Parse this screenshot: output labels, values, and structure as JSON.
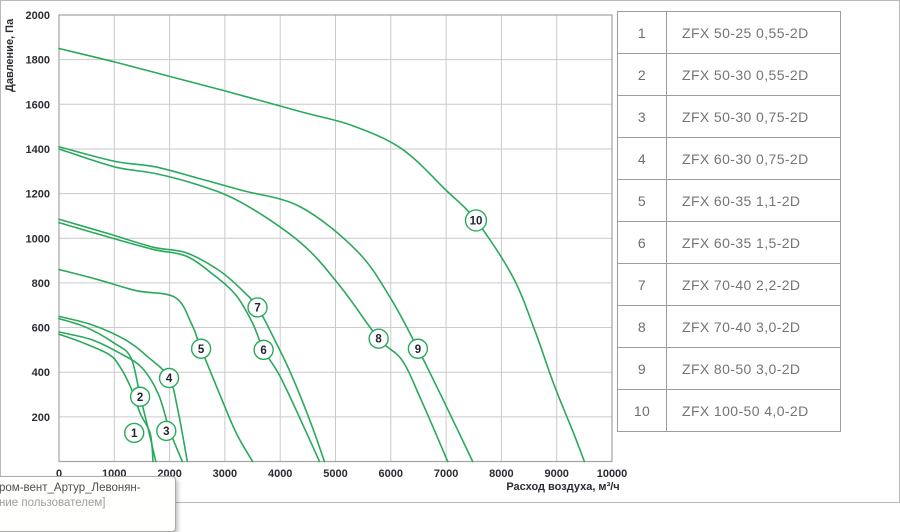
{
  "chart_data": {
    "type": "line",
    "title": "",
    "xlabel": "Расход воздуха, м³/ч",
    "ylabel": "Давление, Па",
    "xlim": [
      0,
      10000
    ],
    "ylim": [
      0,
      2000
    ],
    "x_ticks": [
      0,
      1000,
      2000,
      3000,
      4000,
      5000,
      6000,
      7000,
      8000,
      9000,
      10000
    ],
    "y_ticks": [
      200,
      400,
      600,
      800,
      1000,
      1200,
      1400,
      1600,
      1800,
      2000
    ],
    "grid": true,
    "legend_position": "right-table",
    "line_color": "#2aa95c",
    "grid_color": "#cacaca",
    "axis_color": "#a3a3a3",
    "series": [
      {
        "name": "1",
        "label_at": [
          1360,
          128
        ],
        "points": [
          [
            0,
            570
          ],
          [
            400,
            535
          ],
          [
            900,
            480
          ],
          [
            1100,
            425
          ],
          [
            1300,
            330
          ],
          [
            1470,
            215
          ],
          [
            1650,
            125
          ],
          [
            1700,
            0
          ]
        ]
      },
      {
        "name": "2",
        "label_at": [
          1467,
          290
        ],
        "points": [
          [
            0,
            640
          ],
          [
            500,
            600
          ],
          [
            1000,
            530
          ],
          [
            1300,
            465
          ],
          [
            1470,
            290
          ],
          [
            1600,
            160
          ],
          [
            1750,
            0
          ]
        ]
      },
      {
        "name": "3",
        "label_at": [
          1940,
          137
        ],
        "points": [
          [
            0,
            580
          ],
          [
            600,
            545
          ],
          [
            1100,
            485
          ],
          [
            1500,
            420
          ],
          [
            1800,
            300
          ],
          [
            2000,
            140
          ],
          [
            2230,
            0
          ]
        ]
      },
      {
        "name": "4",
        "label_at": [
          1990,
          374
        ],
        "points": [
          [
            0,
            650
          ],
          [
            600,
            612
          ],
          [
            1200,
            545
          ],
          [
            1600,
            470
          ],
          [
            1990,
            375
          ],
          [
            2150,
            230
          ],
          [
            2320,
            0
          ]
        ]
      },
      {
        "name": "5",
        "label_at": [
          2570,
          505
        ],
        "points": [
          [
            0,
            860
          ],
          [
            700,
            815
          ],
          [
            1400,
            765
          ],
          [
            2100,
            735
          ],
          [
            2400,
            615
          ],
          [
            2570,
            505
          ],
          [
            2900,
            305
          ],
          [
            3200,
            130
          ],
          [
            3500,
            0
          ]
        ]
      },
      {
        "name": "6",
        "label_at": [
          3700,
          500
        ],
        "points": [
          [
            0,
            1070
          ],
          [
            900,
            1005
          ],
          [
            1700,
            950
          ],
          [
            2300,
            920
          ],
          [
            2800,
            835
          ],
          [
            3200,
            745
          ],
          [
            3500,
            620
          ],
          [
            3700,
            500
          ],
          [
            4000,
            380
          ],
          [
            4400,
            170
          ],
          [
            4710,
            0
          ]
        ]
      },
      {
        "name": "7",
        "label_at": [
          3590,
          690
        ],
        "points": [
          [
            0,
            1085
          ],
          [
            900,
            1020
          ],
          [
            1700,
            960
          ],
          [
            2300,
            935
          ],
          [
            2900,
            855
          ],
          [
            3300,
            770
          ],
          [
            3590,
            690
          ],
          [
            3900,
            545
          ],
          [
            4200,
            390
          ],
          [
            4550,
            175
          ],
          [
            4800,
            0
          ]
        ]
      },
      {
        "name": "8",
        "label_at": [
          5780,
          550
        ],
        "points": [
          [
            0,
            1400
          ],
          [
            1000,
            1320
          ],
          [
            1740,
            1290
          ],
          [
            2500,
            1240
          ],
          [
            3300,
            1160
          ],
          [
            4370,
            980
          ],
          [
            5100,
            780
          ],
          [
            5780,
            550
          ],
          [
            6200,
            455
          ],
          [
            6550,
            275
          ],
          [
            7030,
            0
          ]
        ]
      },
      {
        "name": "9",
        "label_at": [
          6490,
          505
        ],
        "points": [
          [
            0,
            1410
          ],
          [
            1000,
            1345
          ],
          [
            1740,
            1320
          ],
          [
            2500,
            1270
          ],
          [
            3300,
            1215
          ],
          [
            4370,
            1140
          ],
          [
            5400,
            940
          ],
          [
            6000,
            730
          ],
          [
            6490,
            505
          ],
          [
            6900,
            300
          ],
          [
            7250,
            120
          ],
          [
            7480,
            0
          ]
        ]
      },
      {
        "name": "10",
        "label_at": [
          7540,
          1080
        ],
        "points": [
          [
            0,
            1850
          ],
          [
            1000,
            1790
          ],
          [
            2000,
            1725
          ],
          [
            3000,
            1660
          ],
          [
            4400,
            1565
          ],
          [
            5300,
            1505
          ],
          [
            6200,
            1400
          ],
          [
            7000,
            1215
          ],
          [
            7540,
            1080
          ],
          [
            8200,
            830
          ],
          [
            8600,
            590
          ],
          [
            8950,
            345
          ],
          [
            9300,
            130
          ],
          [
            9500,
            0
          ]
        ]
      }
    ]
  },
  "legend": {
    "rows": [
      {
        "num": "1",
        "model": "ZFX 50-25 0,55-2D"
      },
      {
        "num": "2",
        "model": "ZFX 50-30 0,55-2D"
      },
      {
        "num": "3",
        "model": "ZFX 50-30 0,75-2D"
      },
      {
        "num": "4",
        "model": "ZFX 60-30 0,75-2D"
      },
      {
        "num": "5",
        "model": "ZFX 60-35 1,1-2D"
      },
      {
        "num": "6",
        "model": "ZFX 60-35 1,5-2D"
      },
      {
        "num": "7",
        "model": "ZFX 70-40 2,2-2D"
      },
      {
        "num": "8",
        "model": "ZFX 70-40 3,0-2D"
      },
      {
        "num": "9",
        "model": "ZFX 80-50 3,0-2D"
      },
      {
        "num": "10",
        "model": "ZFX 100-50 4,0-2D"
      }
    ]
  },
  "tooltip": {
    "line1": "ром-вент_Артур_Левонян-",
    "line2": "ние пользователем]"
  }
}
